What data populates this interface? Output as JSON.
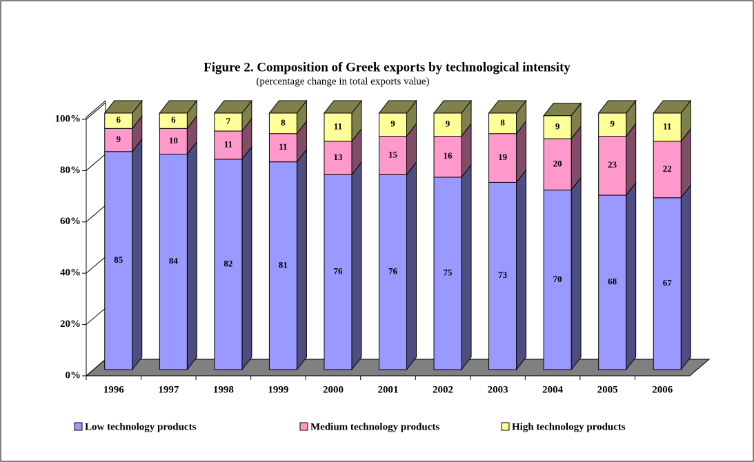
{
  "chart_data": {
    "type": "bar",
    "stacked": true,
    "title": "Figure 2. Composition of Greek exports by technological intensity",
    "subtitle": "(percentage change in total exports value)",
    "categories": [
      "1996",
      "1997",
      "1998",
      "1999",
      "2000",
      "2001",
      "2002",
      "2003",
      "2004",
      "2005",
      "2006"
    ],
    "series": [
      {
        "name": "Low technology products",
        "color": "#9999ff",
        "values": [
          85,
          84,
          82,
          81,
          76,
          76,
          75,
          73,
          70,
          68,
          67
        ]
      },
      {
        "name": "Medium technology products",
        "color": "#ff99cc",
        "values": [
          9,
          10,
          11,
          11,
          13,
          15,
          16,
          19,
          20,
          23,
          22
        ]
      },
      {
        "name": "High technology products",
        "color": "#ffff99",
        "values": [
          6,
          6,
          7,
          8,
          11,
          9,
          9,
          8,
          9,
          9,
          11
        ]
      }
    ],
    "ylim": [
      0,
      100
    ],
    "yticks": [
      {
        "value": 0,
        "label": "0%"
      },
      {
        "value": 20,
        "label": "20%"
      },
      {
        "value": 40,
        "label": "40%"
      },
      {
        "value": 60,
        "label": "60%"
      },
      {
        "value": 80,
        "label": "80%"
      },
      {
        "value": 100,
        "label": "100%"
      }
    ],
    "legend": "bottom"
  }
}
